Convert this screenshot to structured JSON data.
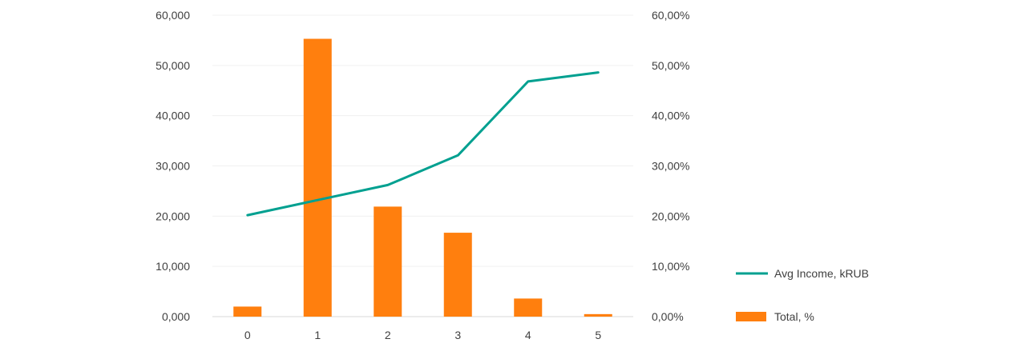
{
  "chart_data": {
    "type": "bar",
    "categories": [
      "0",
      "1",
      "2",
      "3",
      "4",
      "5"
    ],
    "series": [
      {
        "name": "Total, %",
        "type": "bar",
        "axis": "right",
        "values": [
          2.0,
          55.3,
          21.9,
          16.7,
          3.6,
          0.5
        ],
        "color": "#FF7F0E"
      },
      {
        "name": "Avg Income, kRUB",
        "type": "line",
        "axis": "left",
        "values": [
          20200,
          23200,
          26200,
          32100,
          46800,
          48600
        ],
        "color": "#00A090"
      }
    ],
    "y_left": {
      "ylim": [
        0,
        60000
      ],
      "ticks": [
        "0,000",
        "10,000",
        "20,000",
        "30,000",
        "40,000",
        "50,000",
        "60,000"
      ]
    },
    "y_right": {
      "ylim": [
        0,
        60
      ],
      "ticks": [
        "0,00%",
        "10,00%",
        "20,00%",
        "30,00%",
        "40,00%",
        "50,00%",
        "60,00%"
      ]
    },
    "grid": true,
    "legend_position": "right"
  }
}
